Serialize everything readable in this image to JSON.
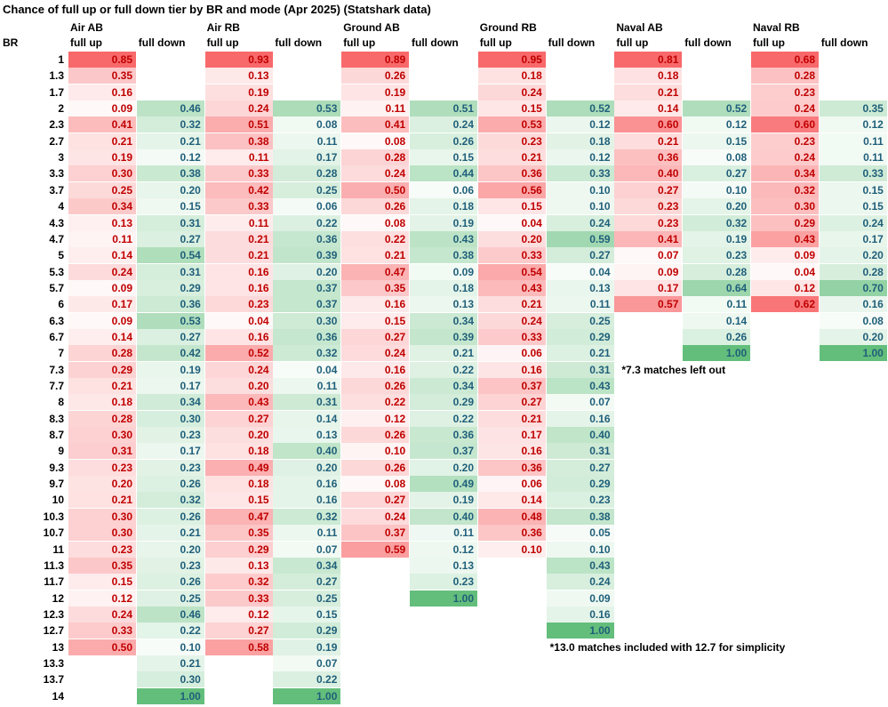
{
  "chart_data": {
    "type": "table",
    "title": "Chance of full up or full down tier by BR and mode (Apr 2025) (Statshark data)",
    "row_header": "BR",
    "rows": [
      "1",
      "1.3",
      "1.7",
      "2",
      "2.3",
      "2.7",
      "3",
      "3.3",
      "3.7",
      "4",
      "4.3",
      "4.7",
      "5",
      "5.3",
      "5.7",
      "6",
      "6.3",
      "6.7",
      "7",
      "7.3",
      "7.7",
      "8",
      "8.3",
      "8.7",
      "9",
      "9.3",
      "9.7",
      "10",
      "10.3",
      "10.7",
      "11",
      "11.3",
      "11.7",
      "12",
      "12.3",
      "12.7",
      "13",
      "13.3",
      "13.7",
      "14"
    ],
    "modes": [
      {
        "name": "Air AB",
        "full_up": [
          "0.85",
          "0.35",
          "0.16",
          "0.09",
          "0.41",
          "0.21",
          "0.19",
          "0.30",
          "0.25",
          "0.34",
          "0.13",
          "0.11",
          "0.14",
          "0.24",
          "0.09",
          "0.17",
          "0.09",
          "0.14",
          "0.28",
          "0.29",
          "0.21",
          "0.18",
          "0.28",
          "0.30",
          "0.31",
          "0.23",
          "0.20",
          "0.21",
          "0.30",
          "0.30",
          "0.23",
          "0.35",
          "0.15",
          "0.12",
          "0.24",
          "0.33",
          "0.50",
          null,
          null,
          null
        ],
        "full_down": [
          null,
          null,
          null,
          "0.46",
          "0.32",
          "0.21",
          "0.12",
          "0.38",
          "0.20",
          "0.15",
          "0.31",
          "0.27",
          "0.54",
          "0.31",
          "0.29",
          "0.36",
          "0.53",
          "0.27",
          "0.42",
          "0.19",
          "0.17",
          "0.34",
          "0.30",
          "0.23",
          "0.17",
          "0.23",
          "0.26",
          "0.32",
          "0.26",
          "0.21",
          "0.20",
          "0.23",
          "0.26",
          "0.25",
          "0.46",
          "0.22",
          "0.10",
          "0.21",
          "0.30",
          "1.00"
        ]
      },
      {
        "name": "Air RB",
        "full_up": [
          "0.93",
          "0.13",
          "0.19",
          "0.24",
          "0.51",
          "0.38",
          "0.11",
          "0.33",
          "0.42",
          "0.33",
          "0.11",
          "0.21",
          "0.21",
          "0.16",
          "0.16",
          "0.23",
          "0.04",
          "0.16",
          "0.52",
          "0.24",
          "0.20",
          "0.43",
          "0.27",
          "0.20",
          "0.18",
          "0.49",
          "0.18",
          "0.15",
          "0.47",
          "0.35",
          "0.29",
          "0.13",
          "0.32",
          "0.33",
          "0.12",
          "0.27",
          "0.58",
          null,
          null,
          null
        ],
        "full_down": [
          null,
          null,
          null,
          "0.53",
          "0.08",
          "0.11",
          "0.17",
          "0.28",
          "0.25",
          "0.06",
          "0.22",
          "0.36",
          "0.39",
          "0.20",
          "0.37",
          "0.37",
          "0.30",
          "0.36",
          "0.32",
          "0.04",
          "0.11",
          "0.31",
          "0.14",
          "0.13",
          "0.40",
          "0.20",
          "0.16",
          "0.16",
          "0.32",
          "0.11",
          "0.07",
          "0.34",
          "0.27",
          "0.25",
          "0.15",
          "0.29",
          "0.19",
          "0.07",
          "0.22",
          "1.00"
        ]
      },
      {
        "name": "Ground AB",
        "full_up": [
          "0.89",
          "0.26",
          "0.19",
          "0.11",
          "0.41",
          "0.08",
          "0.28",
          "0.24",
          "0.50",
          "0.26",
          "0.08",
          "0.22",
          "0.21",
          "0.47",
          "0.35",
          "0.16",
          "0.15",
          "0.27",
          "0.24",
          "0.16",
          "0.26",
          "0.22",
          "0.12",
          "0.26",
          "0.10",
          "0.26",
          "0.08",
          "0.27",
          "0.24",
          "0.37",
          "0.59",
          null,
          null,
          null,
          null,
          null,
          null,
          null,
          null,
          null
        ],
        "full_down": [
          null,
          null,
          null,
          "0.51",
          "0.24",
          "0.26",
          "0.15",
          "0.44",
          "0.06",
          "0.18",
          "0.19",
          "0.43",
          "0.38",
          "0.09",
          "0.18",
          "0.13",
          "0.34",
          "0.39",
          "0.21",
          "0.22",
          "0.34",
          "0.29",
          "0.22",
          "0.36",
          "0.37",
          "0.20",
          "0.49",
          "0.19",
          "0.40",
          "0.11",
          "0.12",
          "0.13",
          "0.23",
          "1.00",
          null,
          null,
          null,
          null,
          null,
          null
        ]
      },
      {
        "name": "Ground RB",
        "full_up": [
          "0.95",
          "0.18",
          "0.24",
          "0.15",
          "0.53",
          "0.23",
          "0.21",
          "0.36",
          "0.56",
          "0.15",
          "0.04",
          "0.20",
          "0.33",
          "0.54",
          "0.43",
          "0.21",
          "0.24",
          "0.33",
          "0.06",
          "0.16",
          "0.37",
          "0.27",
          "0.21",
          "0.17",
          "0.16",
          "0.36",
          "0.06",
          "0.14",
          "0.48",
          "0.36",
          "0.10",
          null,
          null,
          null,
          null,
          null,
          null,
          null,
          null,
          null
        ],
        "full_down": [
          null,
          null,
          null,
          "0.52",
          "0.12",
          "0.18",
          "0.12",
          "0.33",
          "0.10",
          "0.10",
          "0.24",
          "0.59",
          "0.27",
          "0.04",
          "0.13",
          "0.11",
          "0.25",
          "0.29",
          "0.21",
          "0.31",
          "0.43",
          "0.07",
          "0.16",
          "0.40",
          "0.31",
          "0.27",
          "0.29",
          "0.23",
          "0.38",
          "0.05",
          "0.10",
          "0.43",
          "0.24",
          "0.09",
          "0.16",
          "1.00",
          null,
          null,
          null,
          null
        ]
      },
      {
        "name": "Naval AB",
        "full_up": [
          "0.81",
          "0.18",
          "0.21",
          "0.14",
          "0.60",
          "0.21",
          "0.36",
          "0.40",
          "0.27",
          "0.23",
          "0.23",
          "0.41",
          "0.07",
          "0.09",
          "0.17",
          "0.57",
          null,
          null,
          null,
          null,
          null,
          null,
          null,
          null,
          null,
          null,
          null,
          null,
          null,
          null,
          null,
          null,
          null,
          null,
          null,
          null,
          null,
          null,
          null,
          null
        ],
        "full_down": [
          null,
          null,
          null,
          "0.52",
          "0.12",
          "0.15",
          "0.08",
          "0.27",
          "0.10",
          "0.20",
          "0.32",
          "0.19",
          "0.23",
          "0.28",
          "0.64",
          "0.11",
          "0.14",
          "0.26",
          "1.00",
          null,
          null,
          null,
          null,
          null,
          null,
          null,
          null,
          null,
          null,
          null,
          null,
          null,
          null,
          null,
          null,
          null,
          null,
          null,
          null,
          null
        ]
      },
      {
        "name": "Naval RB",
        "full_up": [
          "0.68",
          "0.28",
          "0.23",
          "0.24",
          "0.60",
          "0.23",
          "0.24",
          "0.34",
          "0.32",
          "0.30",
          "0.29",
          "0.43",
          "0.09",
          "0.04",
          "0.12",
          "0.62",
          null,
          null,
          null,
          null,
          null,
          null,
          null,
          null,
          null,
          null,
          null,
          null,
          null,
          null,
          null,
          null,
          null,
          null,
          null,
          null,
          null,
          null,
          null,
          null
        ],
        "full_down": [
          null,
          null,
          null,
          "0.35",
          "0.12",
          "0.11",
          "0.11",
          "0.33",
          "0.15",
          "0.15",
          "0.24",
          "0.17",
          "0.20",
          "0.28",
          "0.70",
          "0.16",
          "0.08",
          "0.20",
          "1.00",
          null,
          null,
          null,
          null,
          null,
          null,
          null,
          null,
          null,
          null,
          null,
          null,
          null,
          null,
          null,
          null,
          null,
          null,
          null,
          null,
          null
        ]
      }
    ],
    "column_labels": {
      "full_up": "full up",
      "full_down": "full down"
    },
    "notes": [
      "*7.3 matches left out",
      "*13.0 matches included with 12.7 for simplicity"
    ],
    "colors": {
      "up_scale_max": "#f8696b",
      "down_scale_max": "#63be7b",
      "up_text": "#c00000",
      "down_text": "#1f5f7a"
    }
  }
}
